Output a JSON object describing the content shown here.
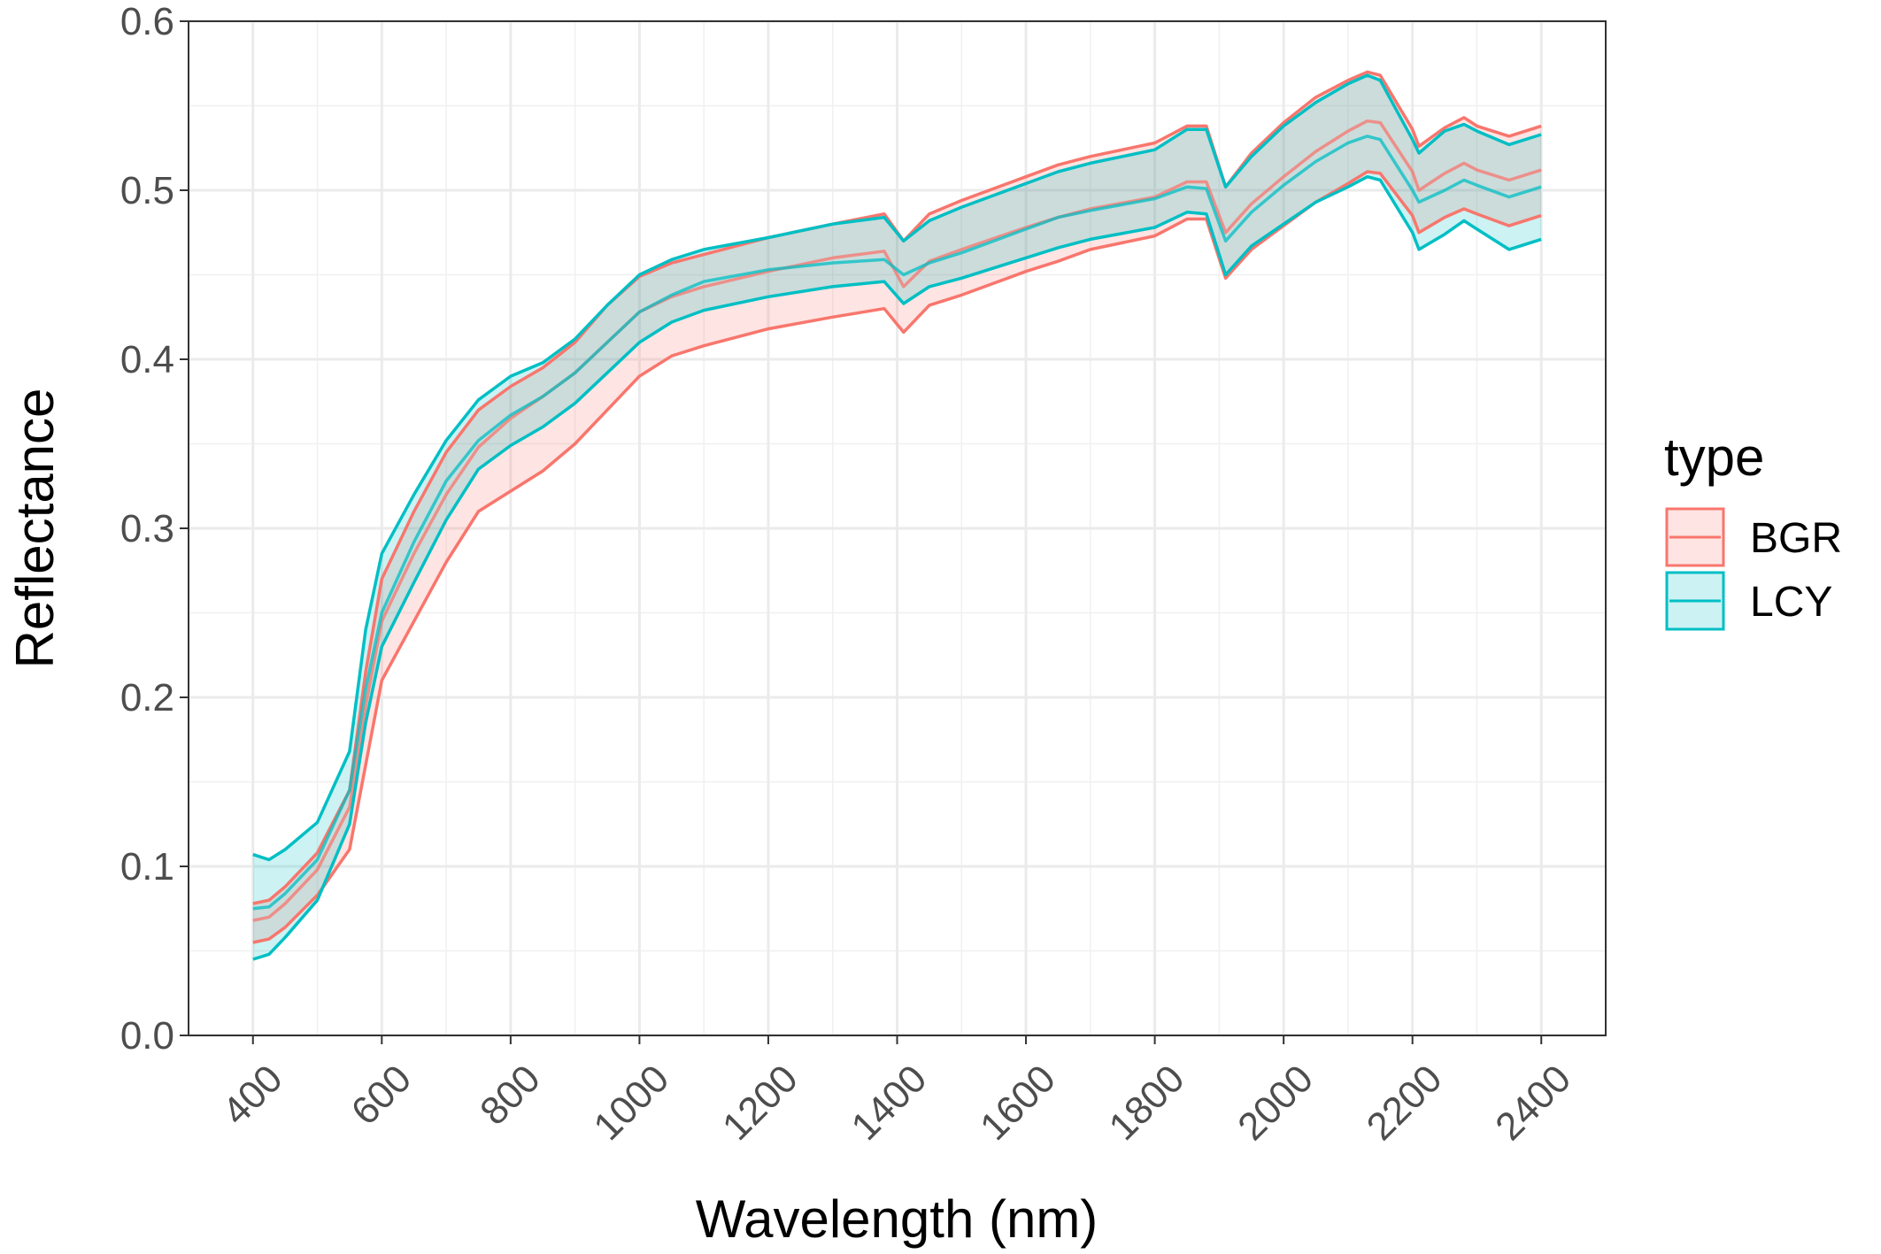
{
  "chart_data": {
    "type": "area",
    "title": "",
    "xlabel": "Wavelength (nm)",
    "ylabel": "Reflectance",
    "xlim": [
      300,
      2500
    ],
    "ylim": [
      0.0,
      0.6
    ],
    "x_ticks": [
      "400",
      "600",
      "800",
      "1000",
      "1200",
      "1400",
      "1600",
      "1800",
      "2000",
      "2200",
      "2400"
    ],
    "y_ticks": [
      "0.0",
      "0.1",
      "0.2",
      "0.3",
      "0.4",
      "0.5",
      "0.6"
    ],
    "grid": true,
    "legend": {
      "title": "type",
      "placement": "right"
    },
    "x": [
      400,
      425,
      450,
      500,
      550,
      575,
      600,
      650,
      700,
      750,
      800,
      850,
      900,
      950,
      1000,
      1050,
      1100,
      1200,
      1300,
      1380,
      1410,
      1450,
      1500,
      1600,
      1650,
      1700,
      1800,
      1850,
      1880,
      1910,
      1950,
      2000,
      2050,
      2100,
      2130,
      2150,
      2200,
      2210,
      2250,
      2280,
      2300,
      2350,
      2400
    ],
    "series": [
      {
        "name": "BGR",
        "color": "#F8766D",
        "mean": [
          0.068,
          0.07,
          0.078,
          0.098,
          0.135,
          0.195,
          0.245,
          0.285,
          0.32,
          0.348,
          0.365,
          0.378,
          0.392,
          0.41,
          0.428,
          0.437,
          0.443,
          0.452,
          0.46,
          0.464,
          0.443,
          0.458,
          0.465,
          0.478,
          0.484,
          0.489,
          0.496,
          0.505,
          0.505,
          0.475,
          0.492,
          0.508,
          0.523,
          0.535,
          0.541,
          0.54,
          0.511,
          0.5,
          0.51,
          0.516,
          0.512,
          0.506,
          0.512
        ],
        "upper": [
          0.078,
          0.08,
          0.088,
          0.108,
          0.145,
          0.215,
          0.27,
          0.31,
          0.345,
          0.37,
          0.384,
          0.395,
          0.41,
          0.432,
          0.449,
          0.457,
          0.462,
          0.472,
          0.48,
          0.486,
          0.47,
          0.486,
          0.494,
          0.508,
          0.515,
          0.52,
          0.528,
          0.538,
          0.538,
          0.502,
          0.522,
          0.54,
          0.555,
          0.565,
          0.57,
          0.568,
          0.536,
          0.526,
          0.537,
          0.543,
          0.538,
          0.532,
          0.538
        ],
        "lower": [
          0.055,
          0.057,
          0.064,
          0.083,
          0.11,
          0.16,
          0.21,
          0.245,
          0.28,
          0.31,
          0.322,
          0.334,
          0.35,
          0.37,
          0.39,
          0.402,
          0.408,
          0.418,
          0.425,
          0.43,
          0.416,
          0.432,
          0.438,
          0.452,
          0.458,
          0.465,
          0.473,
          0.483,
          0.483,
          0.448,
          0.465,
          0.479,
          0.493,
          0.504,
          0.511,
          0.51,
          0.485,
          0.475,
          0.484,
          0.489,
          0.486,
          0.479,
          0.485
        ]
      },
      {
        "name": "LCY",
        "color": "#00BFC4",
        "mean": [
          0.075,
          0.076,
          0.084,
          0.104,
          0.145,
          0.205,
          0.25,
          0.292,
          0.328,
          0.352,
          0.367,
          0.378,
          0.392,
          0.41,
          0.428,
          0.438,
          0.446,
          0.453,
          0.457,
          0.459,
          0.45,
          0.457,
          0.463,
          0.477,
          0.484,
          0.488,
          0.495,
          0.502,
          0.501,
          0.47,
          0.487,
          0.503,
          0.517,
          0.528,
          0.532,
          0.53,
          0.5,
          0.493,
          0.5,
          0.506,
          0.503,
          0.496,
          0.502
        ],
        "upper": [
          0.107,
          0.104,
          0.11,
          0.126,
          0.168,
          0.24,
          0.285,
          0.32,
          0.352,
          0.376,
          0.39,
          0.398,
          0.412,
          0.432,
          0.45,
          0.459,
          0.465,
          0.472,
          0.48,
          0.484,
          0.47,
          0.482,
          0.49,
          0.504,
          0.511,
          0.516,
          0.524,
          0.536,
          0.536,
          0.502,
          0.52,
          0.538,
          0.552,
          0.563,
          0.568,
          0.565,
          0.53,
          0.522,
          0.535,
          0.539,
          0.535,
          0.527,
          0.533
        ],
        "lower": [
          0.045,
          0.048,
          0.058,
          0.08,
          0.125,
          0.185,
          0.23,
          0.268,
          0.305,
          0.335,
          0.349,
          0.36,
          0.374,
          0.392,
          0.41,
          0.422,
          0.429,
          0.437,
          0.443,
          0.446,
          0.433,
          0.443,
          0.448,
          0.46,
          0.466,
          0.471,
          0.478,
          0.487,
          0.486,
          0.45,
          0.467,
          0.48,
          0.493,
          0.502,
          0.508,
          0.506,
          0.475,
          0.465,
          0.474,
          0.482,
          0.477,
          0.465,
          0.471
        ]
      }
    ]
  }
}
